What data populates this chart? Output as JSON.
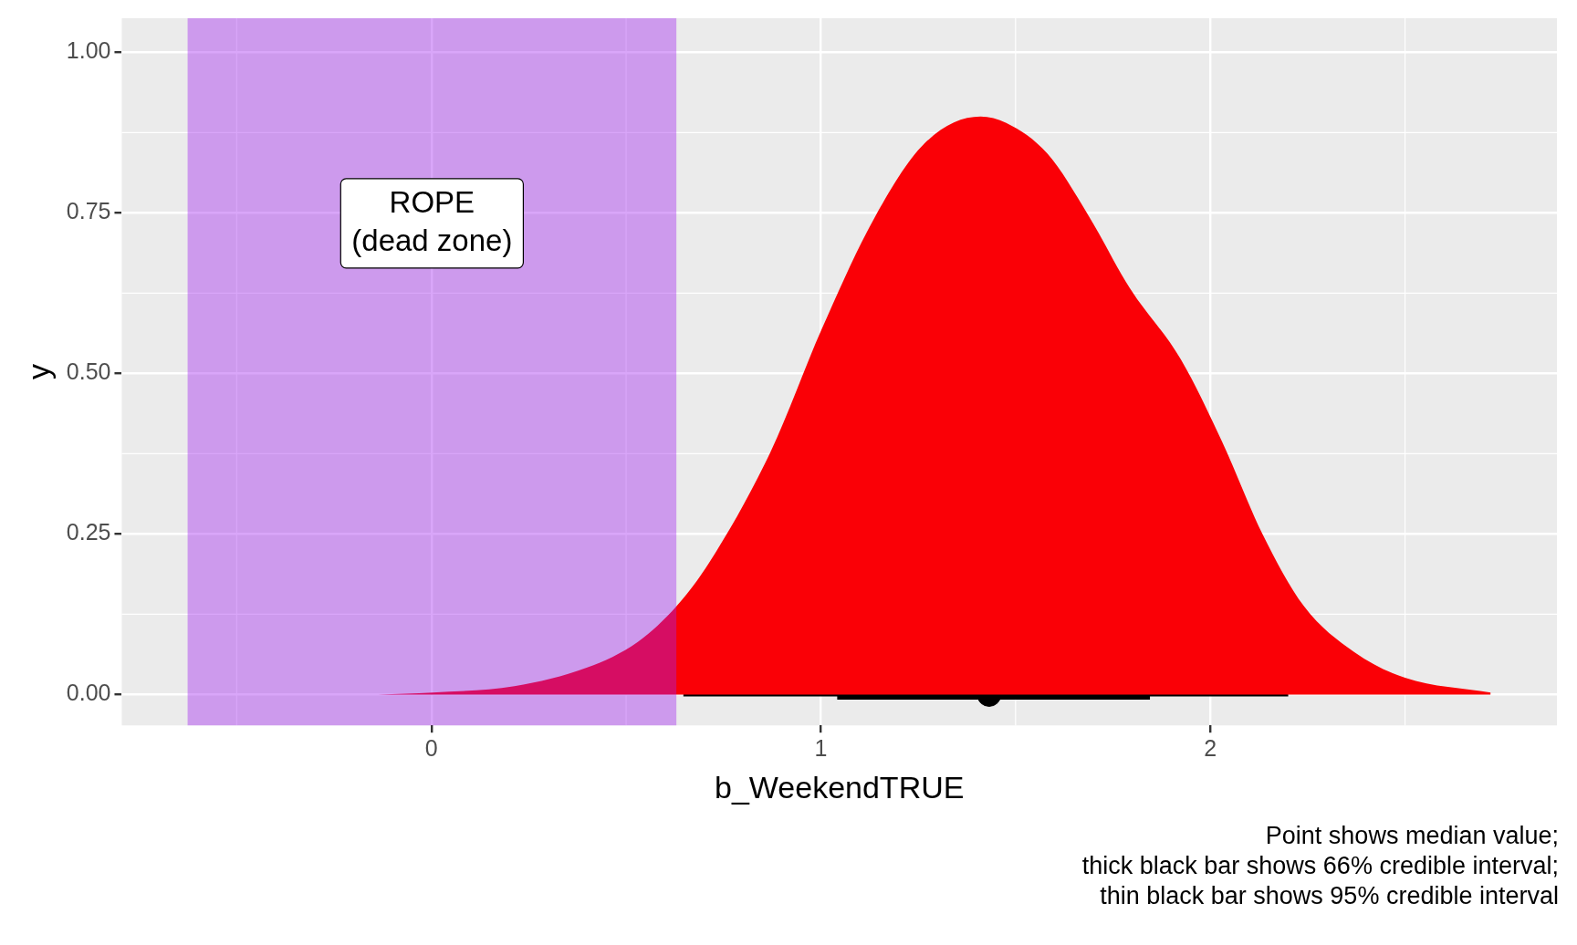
{
  "chart_data": {
    "type": "area",
    "xlabel": "b_WeekendTRUE",
    "ylabel": "y",
    "xlim": [
      -0.795,
      2.89
    ],
    "ylim": [
      -0.048,
      1.053
    ],
    "xticks": [
      0,
      1,
      2
    ],
    "yticks": [
      {
        "value": 0,
        "label": "0.00"
      },
      {
        "value": 0.25,
        "label": "0.25"
      },
      {
        "value": 0.5,
        "label": "0.50"
      },
      {
        "value": 0.75,
        "label": "0.75"
      },
      {
        "value": 1,
        "label": "1.00"
      }
    ],
    "grid": true,
    "legend": false,
    "series": [
      {
        "type": "area",
        "color": "#fa0006",
        "x": [
          -0.137,
          0.003,
          0.213,
          0.4,
          0.53,
          0.63,
          0.713,
          0.871,
          1.003,
          1.134,
          1.266,
          1.41,
          1.476,
          1.582,
          1.687,
          1.792,
          1.924,
          2.03,
          2.134,
          2.24,
          2.37,
          2.5,
          2.72
        ],
        "values": [
          0,
          0.003,
          0.013,
          0.042,
          0.082,
          0.138,
          0.205,
          0.378,
          0.57,
          0.738,
          0.858,
          0.9,
          0.89,
          0.842,
          0.746,
          0.634,
          0.522,
          0.394,
          0.25,
          0.138,
          0.066,
          0.026,
          0.003
        ]
      },
      {
        "type": "line",
        "color": "#000000",
        "x": [
          0.647,
          2.2
        ],
        "values": [
          0,
          0
        ]
      },
      {
        "type": "scatter",
        "color": "#000000",
        "marker": "circle",
        "x": [
          1.432
        ],
        "values": [
          0
        ],
        "xerrors": [
          [
            1.042,
            1.845
          ]
        ]
      }
    ],
    "bands": [
      {
        "axis": "x",
        "from": -0.626,
        "to": 0.629,
        "label": "ROPE\n(dead zone)",
        "color": "#a020f0"
      }
    ],
    "annotations": [
      "Point shows median value;\nthick black bar shows 66% credible interval;\nthin black bar shows 95% credible interval"
    ]
  }
}
